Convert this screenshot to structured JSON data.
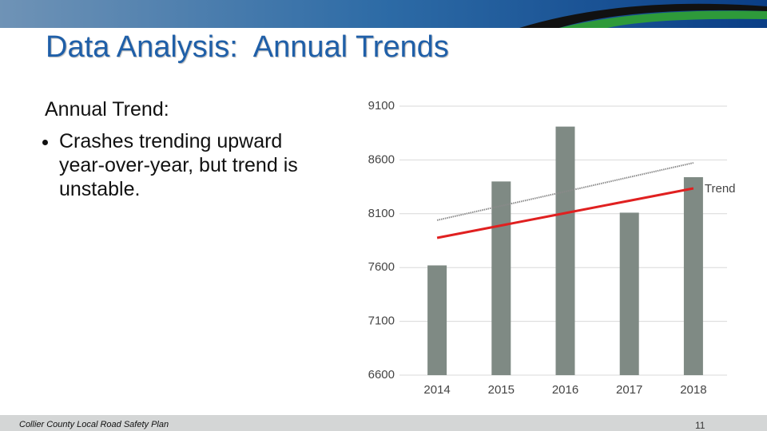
{
  "header": {
    "title": "Data Analysis:  Annual Trends"
  },
  "text": {
    "heading": "Annual Trend:",
    "bullets": [
      "Crashes trending upward year-over-year, but trend is unstable."
    ]
  },
  "footer": {
    "text": "Collier County Local Road Safety Plan",
    "page": "11"
  },
  "chart_data": {
    "type": "bar",
    "categories": [
      "2014",
      "2015",
      "2016",
      "2017",
      "2018"
    ],
    "values": [
      7620,
      8400,
      8910,
      8110,
      8440
    ],
    "color": "#7f8a84",
    "ylim": [
      6600,
      9100
    ],
    "yticks": [
      6600,
      7100,
      7600,
      8100,
      8600,
      9100
    ],
    "grid": true,
    "lines": [
      {
        "name": "Trend",
        "color": "#e02020",
        "style": "solid",
        "values": [
          7876,
          7991,
          8106,
          8221,
          8336
        ]
      },
      {
        "color": "#8a8a8a",
        "style": "dotted",
        "values": [
          8040,
          8173,
          8306,
          8440,
          8573
        ]
      }
    ]
  }
}
